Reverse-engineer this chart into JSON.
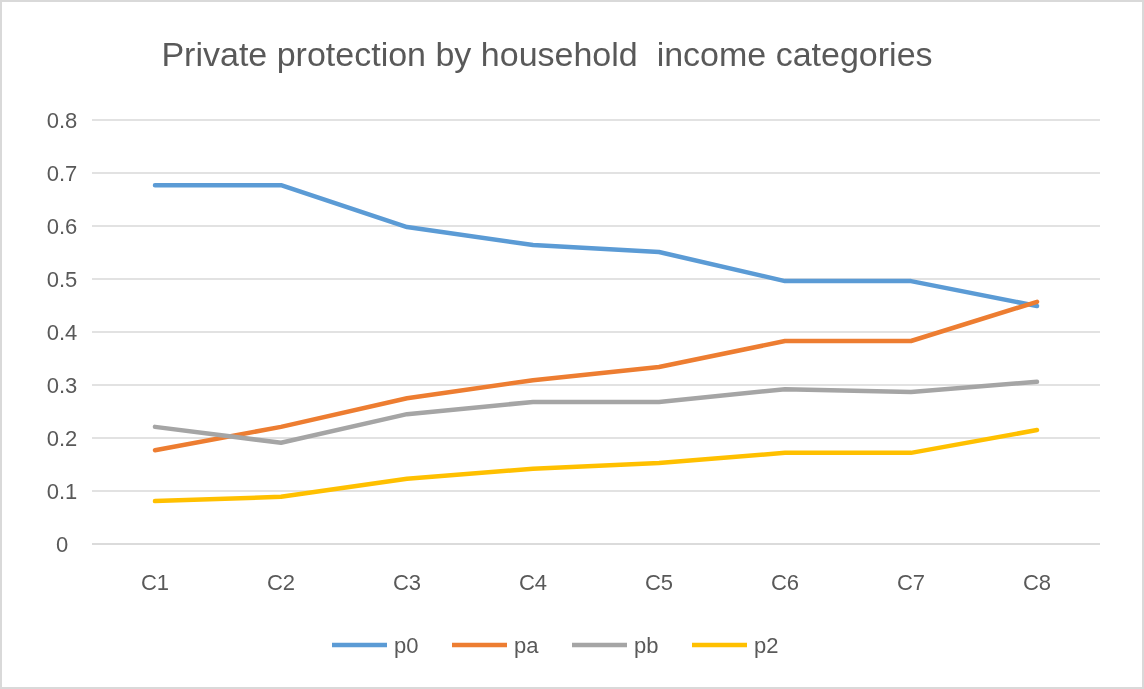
{
  "chart_data": {
    "type": "line",
    "title": "Private protection by household  income categories",
    "categories": [
      "C1",
      "C2",
      "C3",
      "C4",
      "C5",
      "C6",
      "C7",
      "C8"
    ],
    "series": [
      {
        "name": "p0",
        "color": "#5b9bd5",
        "values": [
          0.677,
          0.677,
          0.598,
          0.564,
          0.551,
          0.496,
          0.496,
          0.449
        ]
      },
      {
        "name": "pa",
        "color": "#ed7d31",
        "values": [
          0.177,
          0.221,
          0.275,
          0.309,
          0.334,
          0.383,
          0.383,
          0.457
        ]
      },
      {
        "name": "pb",
        "color": "#a5a5a5",
        "values": [
          0.221,
          0.191,
          0.245,
          0.268,
          0.268,
          0.292,
          0.287,
          0.306
        ]
      },
      {
        "name": "p2",
        "color": "#ffc000",
        "values": [
          0.081,
          0.089,
          0.123,
          0.142,
          0.153,
          0.172,
          0.172,
          0.215
        ]
      }
    ],
    "ylim": [
      0,
      0.8
    ],
    "yticks": [
      0,
      0.1,
      0.2,
      0.3,
      0.4,
      0.5,
      0.6,
      0.7,
      0.8
    ],
    "grid": "y",
    "legend": "bottom",
    "line_style": "solid",
    "marker": "none"
  }
}
